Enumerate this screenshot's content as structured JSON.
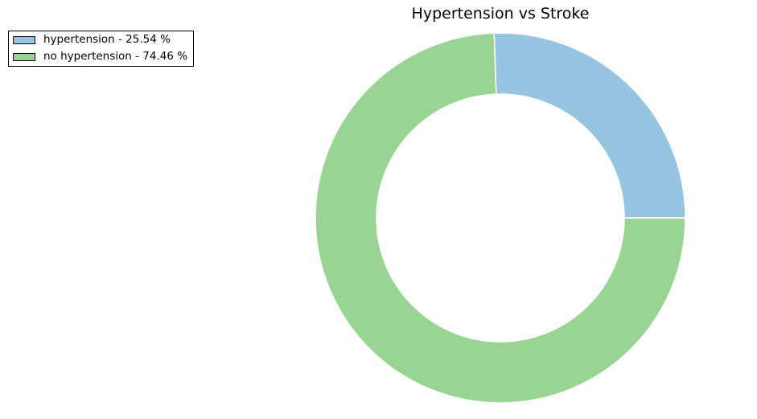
{
  "chart_data": {
    "type": "pie",
    "style": "donut",
    "title": "Hypertension vs Stroke",
    "categories": [
      "hypertension",
      "no hypertension"
    ],
    "values": [
      25.54,
      74.46
    ],
    "colors": [
      "#97c4e0",
      "#9ad493"
    ],
    "legend": {
      "placement": "top-left",
      "entries": [
        "hypertension - 25.54 %",
        "no hypertension - 74.46 %"
      ]
    },
    "grid": false
  }
}
